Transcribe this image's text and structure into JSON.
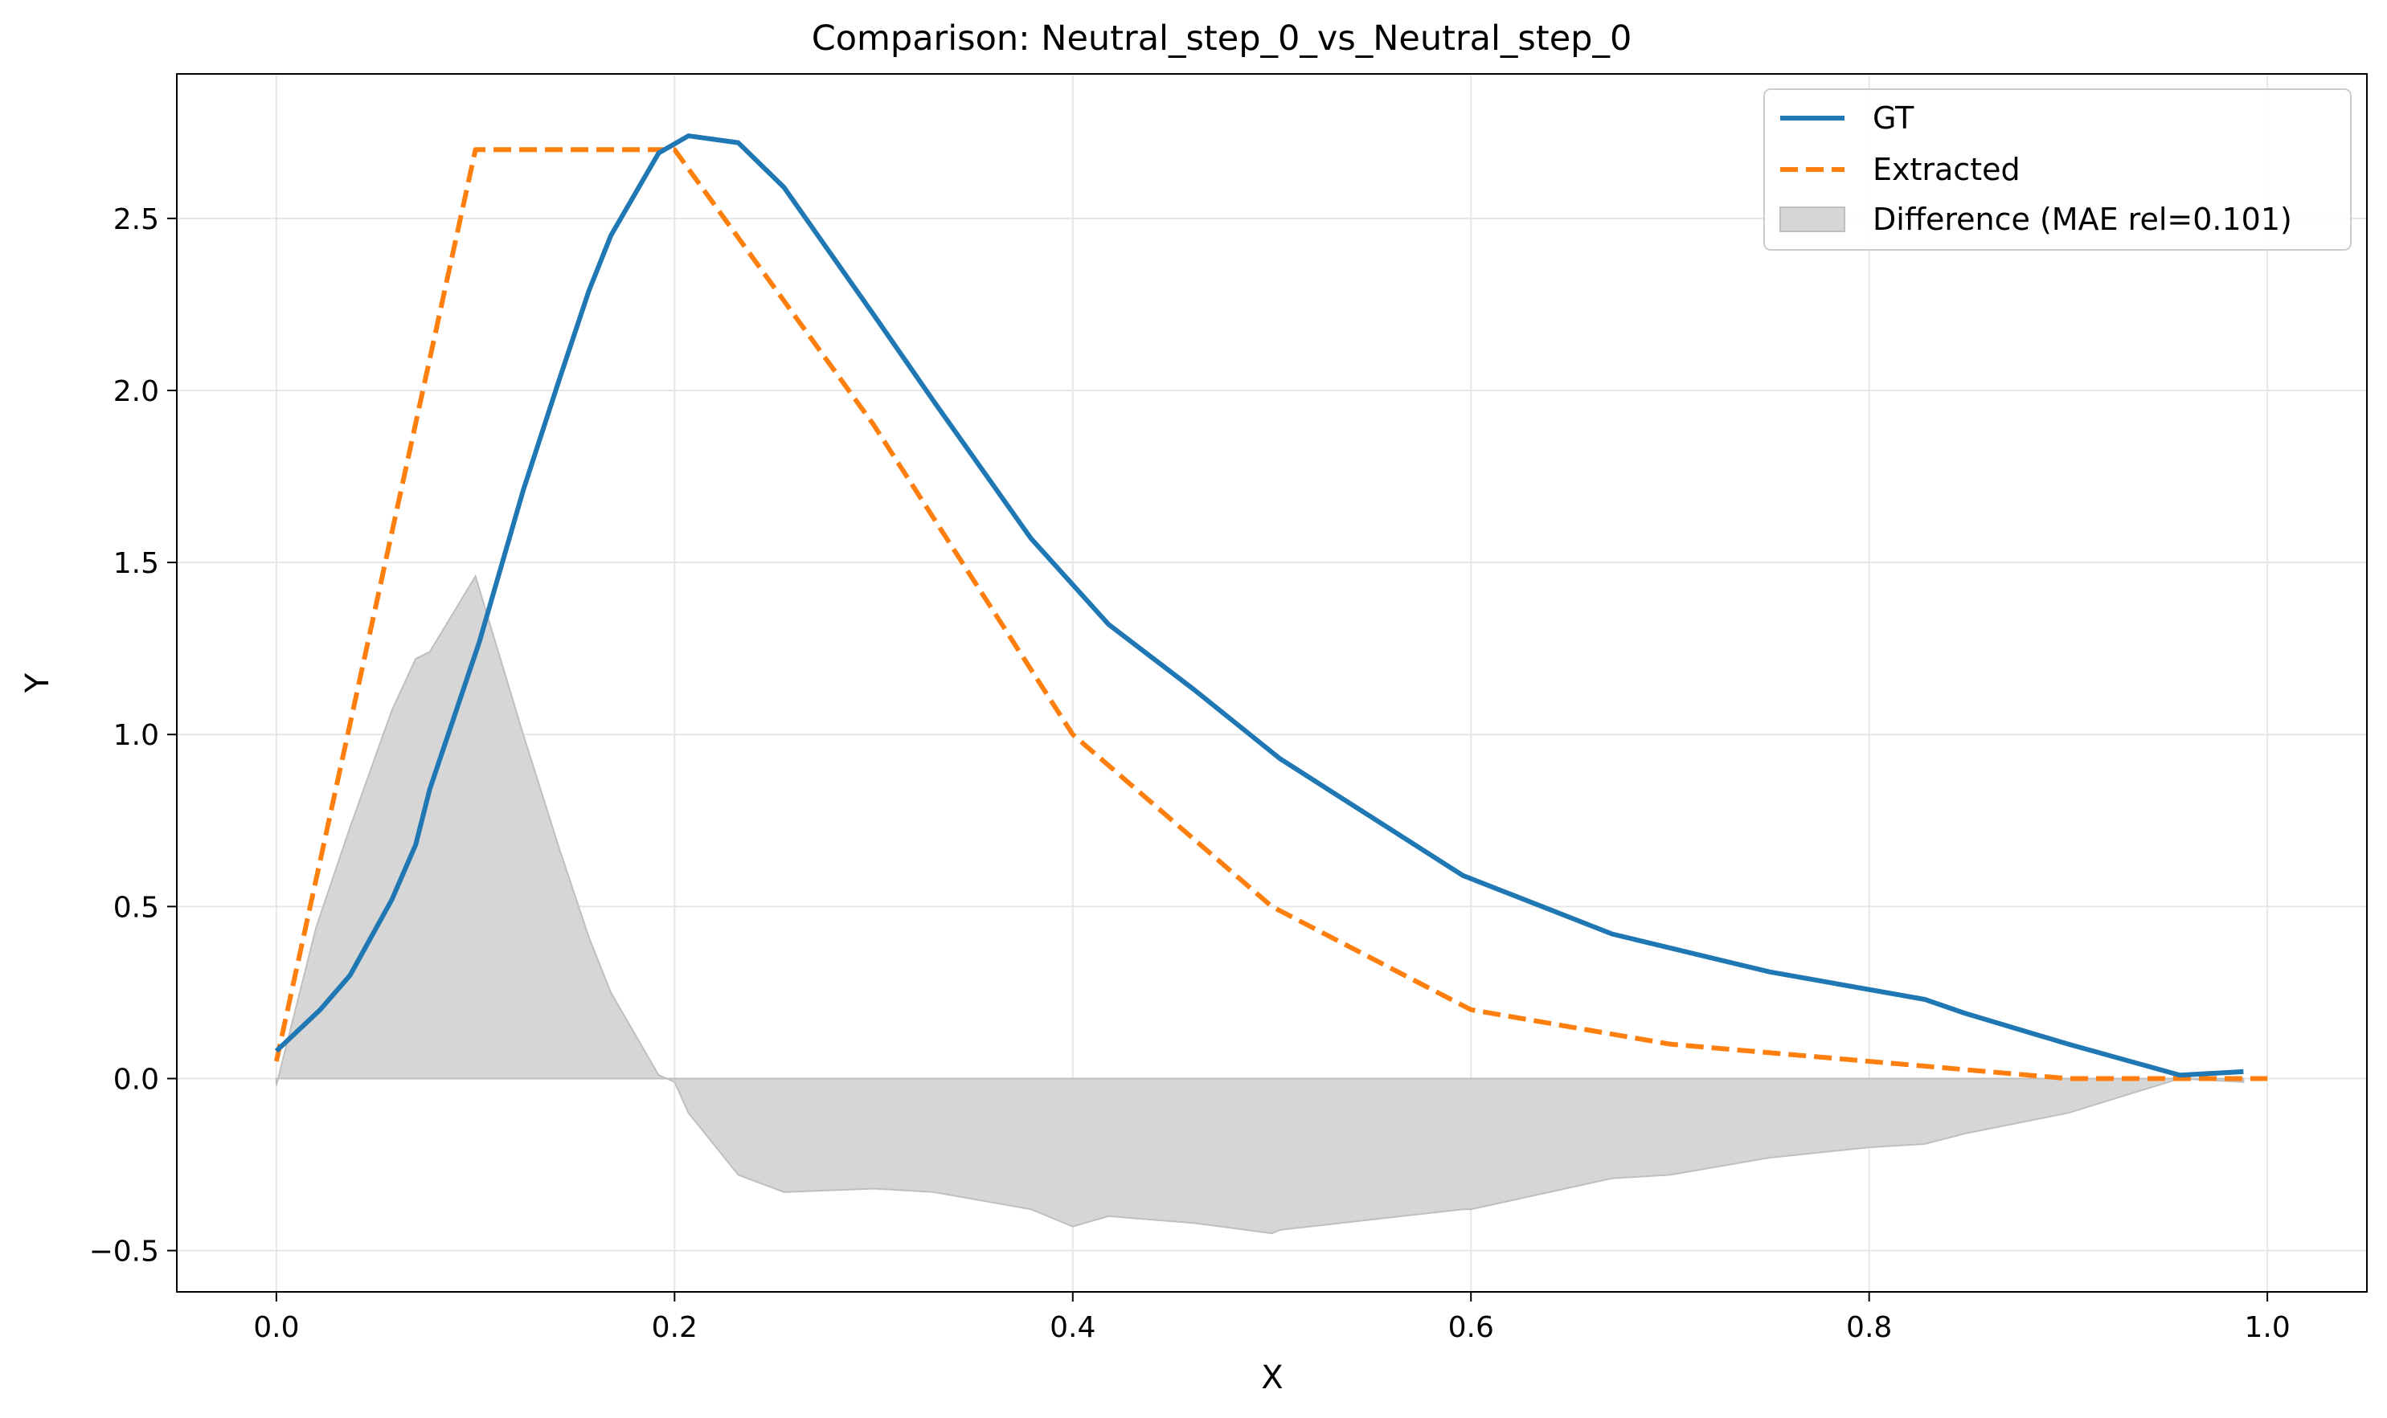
{
  "chart_data": {
    "type": "line",
    "title": "Comparison: Neutral_step_0_vs_Neutral_step_0",
    "xlabel": "X",
    "ylabel": "Y",
    "xlim": [
      -0.05,
      1.05
    ],
    "ylim": [
      -0.62,
      2.92
    ],
    "x_ticks": [
      0.0,
      0.2,
      0.4,
      0.6,
      0.8,
      1.0
    ],
    "x_tick_labels": [
      "0.0",
      "0.2",
      "0.4",
      "0.6",
      "0.8",
      "1.0"
    ],
    "y_ticks": [
      -0.5,
      0.0,
      0.5,
      1.0,
      1.5,
      2.0,
      2.5
    ],
    "y_tick_labels": [
      "−0.5",
      "0.0",
      "0.5",
      "1.0",
      "1.5",
      "2.0",
      "2.5"
    ],
    "grid": true,
    "legend_position": "top-right",
    "series": [
      {
        "name": "GT",
        "color": "#1f77b4",
        "style": "solid",
        "x": [
          0.0,
          0.022,
          0.037,
          0.058,
          0.07,
          0.077,
          0.102,
          0.124,
          0.142,
          0.157,
          0.168,
          0.192,
          0.207,
          0.232,
          0.255,
          0.3,
          0.33,
          0.379,
          0.418,
          0.461,
          0.504,
          0.596,
          0.671,
          0.75,
          0.828,
          0.848,
          0.9,
          0.956,
          0.988
        ],
        "y": [
          0.08,
          0.2,
          0.3,
          0.52,
          0.68,
          0.84,
          1.27,
          1.71,
          2.03,
          2.29,
          2.45,
          2.69,
          2.74,
          2.72,
          2.59,
          2.22,
          1.97,
          1.57,
          1.32,
          1.13,
          0.93,
          0.59,
          0.42,
          0.31,
          0.23,
          0.19,
          0.1,
          0.01,
          0.02
        ]
      },
      {
        "name": "Extracted",
        "color": "#ff7f0e",
        "style": "dashed",
        "x": [
          0.0,
          0.1,
          0.2,
          0.3,
          0.4,
          0.5,
          0.6,
          0.7,
          0.8,
          0.9,
          1.0
        ],
        "y": [
          0.05,
          2.7,
          2.7,
          1.9,
          1.0,
          0.5,
          0.2,
          0.1,
          0.05,
          0.0,
          0.0
        ]
      },
      {
        "name": "Difference (MAE rel=0.101)",
        "color": "#d6d6d6",
        "style": "fill",
        "x": [
          0.0,
          0.02,
          0.037,
          0.058,
          0.07,
          0.077,
          0.1,
          0.124,
          0.142,
          0.157,
          0.168,
          0.192,
          0.2,
          0.207,
          0.232,
          0.255,
          0.3,
          0.33,
          0.379,
          0.4,
          0.418,
          0.461,
          0.5,
          0.504,
          0.596,
          0.6,
          0.671,
          0.7,
          0.75,
          0.8,
          0.828,
          0.848,
          0.9,
          0.956,
          0.988
        ],
        "y": [
          -0.02,
          0.44,
          0.73,
          1.07,
          1.22,
          1.24,
          1.46,
          1.0,
          0.67,
          0.41,
          0.25,
          0.01,
          -0.01,
          -0.1,
          -0.28,
          -0.33,
          -0.32,
          -0.33,
          -0.38,
          -0.43,
          -0.4,
          -0.42,
          -0.45,
          -0.44,
          -0.38,
          -0.38,
          -0.29,
          -0.28,
          -0.23,
          -0.2,
          -0.19,
          -0.16,
          -0.1,
          0.0,
          -0.01
        ]
      }
    ]
  }
}
